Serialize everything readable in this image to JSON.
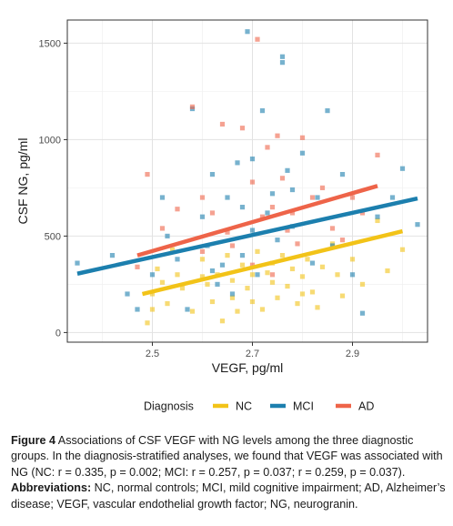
{
  "chart_data": {
    "type": "scatter",
    "xlabel": "VEGF, pg/ml",
    "ylabel": "CSF NG, pg/ml",
    "xlim": [
      2.33,
      3.05
    ],
    "ylim": [
      -50,
      1620
    ],
    "x_ticks": [
      2.5,
      2.7,
      2.9
    ],
    "x_tick_labels": [
      "2.5",
      "2.7",
      "2.9"
    ],
    "y_ticks": [
      0,
      500,
      1000,
      1500
    ],
    "y_tick_labels": [
      "0",
      "500",
      "1000",
      "1500"
    ],
    "grid": true,
    "legend": {
      "title": "Diagnosis",
      "position": "bottom",
      "entries": [
        "NC",
        "MCI",
        "AD"
      ]
    },
    "series": [
      {
        "name": "NC",
        "color": "#F2C318",
        "fit_line": {
          "x": [
            2.48,
            3.0
          ],
          "y": [
            200,
            525
          ]
        },
        "points": [
          [
            2.49,
            50
          ],
          [
            2.5,
            120
          ],
          [
            2.5,
            200
          ],
          [
            2.51,
            330
          ],
          [
            2.52,
            260
          ],
          [
            2.53,
            150
          ],
          [
            2.54,
            430
          ],
          [
            2.55,
            300
          ],
          [
            2.56,
            230
          ],
          [
            2.58,
            110
          ],
          [
            2.6,
            380
          ],
          [
            2.61,
            250
          ],
          [
            2.62,
            160
          ],
          [
            2.63,
            300
          ],
          [
            2.64,
            60
          ],
          [
            2.65,
            400
          ],
          [
            2.66,
            270
          ],
          [
            2.67,
            110
          ],
          [
            2.68,
            350
          ],
          [
            2.69,
            230
          ],
          [
            2.7,
            160
          ],
          [
            2.7,
            300
          ],
          [
            2.71,
            420
          ],
          [
            2.72,
            120
          ],
          [
            2.73,
            310
          ],
          [
            2.74,
            260
          ],
          [
            2.75,
            180
          ],
          [
            2.76,
            400
          ],
          [
            2.77,
            240
          ],
          [
            2.78,
            330
          ],
          [
            2.79,
            150
          ],
          [
            2.8,
            290
          ],
          [
            2.81,
            380
          ],
          [
            2.82,
            210
          ],
          [
            2.83,
            130
          ],
          [
            2.84,
            340
          ],
          [
            2.86,
            460
          ],
          [
            2.87,
            300
          ],
          [
            2.88,
            190
          ],
          [
            2.9,
            380
          ],
          [
            2.92,
            250
          ],
          [
            2.95,
            580
          ],
          [
            2.97,
            320
          ],
          [
            3.0,
            430
          ],
          [
            2.6,
            290
          ],
          [
            2.66,
            180
          ],
          [
            2.74,
            360
          ],
          [
            2.8,
            200
          ]
        ]
      },
      {
        "name": "MCI",
        "color": "#1C7FAE",
        "fit_line": {
          "x": [
            2.35,
            3.03
          ],
          "y": [
            305,
            695
          ]
        },
        "points": [
          [
            2.35,
            360
          ],
          [
            2.42,
            400
          ],
          [
            2.45,
            200
          ],
          [
            2.47,
            120
          ],
          [
            2.5,
            300
          ],
          [
            2.52,
            700
          ],
          [
            2.53,
            500
          ],
          [
            2.55,
            380
          ],
          [
            2.57,
            120
          ],
          [
            2.58,
            1160
          ],
          [
            2.6,
            600
          ],
          [
            2.61,
            450
          ],
          [
            2.62,
            820
          ],
          [
            2.63,
            250
          ],
          [
            2.64,
            350
          ],
          [
            2.65,
            700
          ],
          [
            2.66,
            200
          ],
          [
            2.67,
            880
          ],
          [
            2.68,
            400
          ],
          [
            2.69,
            1560
          ],
          [
            2.7,
            900
          ],
          [
            2.7,
            530
          ],
          [
            2.71,
            300
          ],
          [
            2.72,
            1150
          ],
          [
            2.73,
            620
          ],
          [
            2.74,
            720
          ],
          [
            2.75,
            480
          ],
          [
            2.76,
            1430
          ],
          [
            2.76,
            1400
          ],
          [
            2.77,
            840
          ],
          [
            2.78,
            550
          ],
          [
            2.8,
            930
          ],
          [
            2.82,
            360
          ],
          [
            2.83,
            700
          ],
          [
            2.85,
            1150
          ],
          [
            2.86,
            450
          ],
          [
            2.88,
            820
          ],
          [
            2.9,
            300
          ],
          [
            2.92,
            100
          ],
          [
            2.95,
            600
          ],
          [
            2.98,
            700
          ],
          [
            3.0,
            850
          ],
          [
            3.03,
            560
          ],
          [
            2.62,
            320
          ],
          [
            2.78,
            740
          ],
          [
            2.68,
            650
          ]
        ]
      },
      {
        "name": "AD",
        "color": "#EE6449",
        "fit_line": {
          "x": [
            2.47,
            2.95
          ],
          "y": [
            400,
            760
          ]
        },
        "points": [
          [
            2.47,
            340
          ],
          [
            2.49,
            820
          ],
          [
            2.52,
            540
          ],
          [
            2.55,
            640
          ],
          [
            2.58,
            1170
          ],
          [
            2.6,
            700
          ],
          [
            2.62,
            620
          ],
          [
            2.64,
            1080
          ],
          [
            2.65,
            520
          ],
          [
            2.66,
            450
          ],
          [
            2.68,
            1060
          ],
          [
            2.7,
            780
          ],
          [
            2.71,
            1520
          ],
          [
            2.72,
            600
          ],
          [
            2.73,
            960
          ],
          [
            2.74,
            650
          ],
          [
            2.75,
            1020
          ],
          [
            2.76,
            800
          ],
          [
            2.77,
            530
          ],
          [
            2.78,
            620
          ],
          [
            2.79,
            460
          ],
          [
            2.8,
            1010
          ],
          [
            2.82,
            700
          ],
          [
            2.84,
            750
          ],
          [
            2.86,
            540
          ],
          [
            2.88,
            480
          ],
          [
            2.9,
            700
          ],
          [
            2.92,
            620
          ],
          [
            2.95,
            920
          ],
          [
            2.6,
            420
          ],
          [
            2.7,
            350
          ],
          [
            2.74,
            300
          ]
        ]
      }
    ]
  },
  "caption": {
    "label": "Figure 4",
    "text": " Associations of CSF VEGF with NG levels among the three diagnostic groups. In the diagnosis-stratified analyses, we found that VEGF was associated with NG (NC: r = 0.335, p = 0.002; MCI: r = 0.257, p = 0.037; r = 0.259, p = 0.037).",
    "abbrev_label": "Abbreviations:",
    "abbrev_text": " NC, normal controls; MCI, mild cognitive impairment; AD, Alzheimer’s disease; VEGF, vascular endothelial growth factor; NG, neurogranin."
  }
}
